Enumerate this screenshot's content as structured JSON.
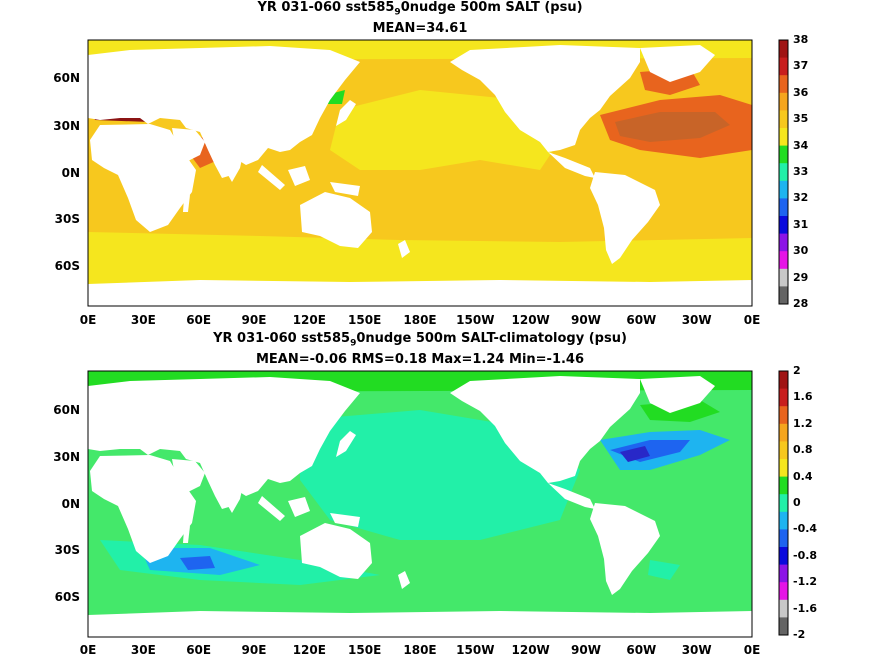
{
  "panels": [
    {
      "title_pre": "YR 031-060 sst585",
      "title_sub": "9",
      "title_post": "0nudge 500m SALT (psu)",
      "stats": "MEAN=34.61",
      "colorbar": {
        "labels": [
          "38",
          "37",
          "36",
          "35",
          "34",
          "33",
          "32",
          "31",
          "30",
          "29",
          "28"
        ],
        "colors": [
          "#a01414",
          "#c81e1e",
          "#e8641e",
          "#f5a51e",
          "#f7c81e",
          "#f5e61e",
          "#22dc22",
          "#22f0a8",
          "#1eb4f0",
          "#1e64f0",
          "#0a0adc",
          "#8c14e6",
          "#e614e6",
          "#c8c8c8",
          "#646464"
        ]
      }
    },
    {
      "title_pre": "YR 031-060 sst585",
      "title_sub": "9",
      "title_post": "0nudge 500m SALT-climatology (psu)",
      "stats": "MEAN=-0.06   RMS=0.18   Max=1.24   Min=-1.46",
      "colorbar": {
        "labels": [
          "2",
          "1.6",
          "1.2",
          "0.8",
          "0.4",
          "0",
          "-0.4",
          "-0.8",
          "-1.2",
          "-1.6",
          "-2"
        ],
        "colors": [
          "#a01414",
          "#c81e1e",
          "#e8641e",
          "#f5a51e",
          "#f7c81e",
          "#f5e61e",
          "#22dc22",
          "#22f0a8",
          "#1eb4f0",
          "#1e64f0",
          "#0a0adc",
          "#8c14e6",
          "#e614e6",
          "#c8c8c8",
          "#646464"
        ]
      }
    }
  ],
  "lat_labels": [
    "60N",
    "30N",
    "0N",
    "30S",
    "60S"
  ],
  "lon_labels": [
    "0E",
    "30E",
    "60E",
    "90E",
    "120E",
    "150E",
    "180E",
    "150W",
    "120W",
    "90W",
    "60W",
    "30W",
    "0E"
  ],
  "colors": {
    "land": "#ffffff",
    "salt_35": "#f7c81e",
    "salt_34_5": "#f5e61e",
    "salt_36": "#e8641e",
    "salt_37": "#c86428",
    "salt_38": "#8c1414",
    "salt_33": "#22dc22",
    "anom_0": "#22f0a8",
    "anom_pos": "#44e86a",
    "anom_neg1": "#1eb4f0",
    "anom_neg2": "#1e64f0",
    "anom_neg3": "#2828c8"
  }
}
